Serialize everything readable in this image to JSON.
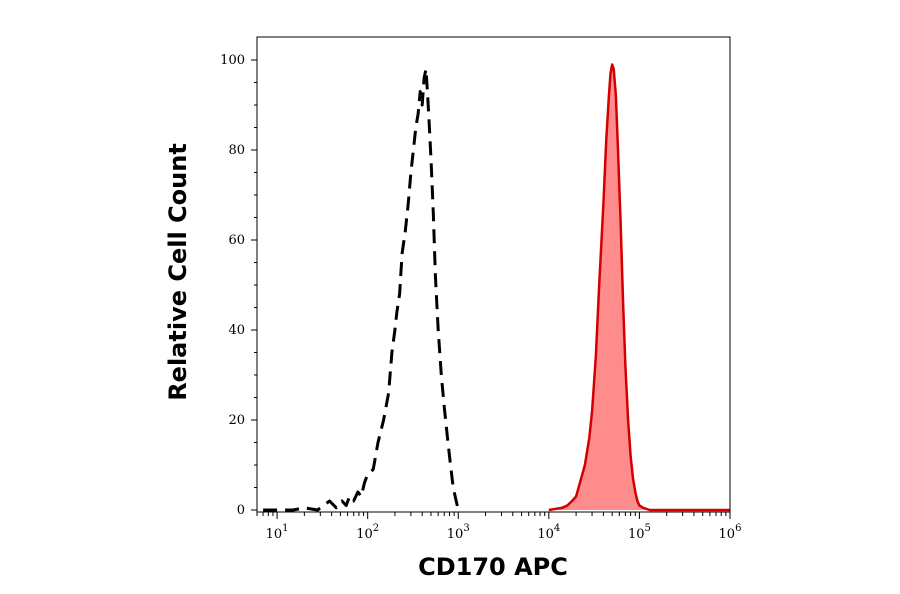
{
  "chart_data": {
    "type": "area",
    "xlabel": "CD170 APC",
    "ylabel": "Relative Cell Count",
    "x_scale": "log",
    "xlim": [
      6,
      1000000
    ],
    "ylim": [
      0,
      100
    ],
    "x_ticks": [
      {
        "value": 10,
        "base": "10",
        "exp": "1"
      },
      {
        "value": 100,
        "base": "10",
        "exp": "2"
      },
      {
        "value": 1000,
        "base": "10",
        "exp": "3"
      },
      {
        "value": 10000,
        "base": "10",
        "exp": "4"
      },
      {
        "value": 100000,
        "base": "10",
        "exp": "5"
      },
      {
        "value": 1000000,
        "base": "10",
        "exp": "6"
      }
    ],
    "y_ticks": [
      0,
      20,
      40,
      60,
      80,
      100
    ],
    "grid": false,
    "legend": "none",
    "series": [
      {
        "style": "dashed",
        "color": "#000000",
        "fill": "none",
        "x": [
          7,
          15,
          20,
          28,
          38,
          45,
          52,
          58,
          63,
          70,
          78,
          85,
          92,
          100,
          115,
          130,
          150,
          170,
          185,
          200,
          210,
          225,
          240,
          260,
          280,
          300,
          320,
          340,
          360,
          380,
          400,
          420,
          440,
          460,
          480,
          500,
          530,
          560,
          600,
          650,
          700,
          760,
          820,
          880,
          950,
          1000,
          1050
        ],
        "y": [
          0,
          0,
          0.5,
          0,
          2,
          0.5,
          2,
          1,
          3,
          2,
          4,
          3,
          6,
          8,
          9,
          15,
          20,
          26,
          35,
          40,
          44,
          48,
          57,
          62,
          68,
          75,
          80,
          85,
          88,
          93,
          90,
          96,
          98,
          92,
          85,
          78,
          66,
          52,
          40,
          30,
          23,
          16,
          10,
          5,
          2,
          0,
          0
        ]
      },
      {
        "style": "solid",
        "color": "#d40000",
        "fill": "#ff8c8c",
        "x": [
          10000,
          14000,
          16000,
          18000,
          20000,
          22000,
          25000,
          28000,
          30000,
          33000,
          36000,
          40000,
          43000,
          46000,
          48000,
          50000,
          52000,
          55000,
          58000,
          62000,
          66000,
          70000,
          75000,
          80000,
          85000,
          90000,
          95000,
          100000,
          110000,
          130000,
          200000,
          1000000
        ],
        "y": [
          0,
          0.5,
          1,
          2,
          3,
          6,
          10,
          16,
          22,
          34,
          50,
          68,
          82,
          92,
          97,
          99,
          98,
          92,
          80,
          64,
          46,
          32,
          20,
          12,
          7,
          4,
          2,
          1,
          0.5,
          0,
          0,
          0
        ]
      }
    ]
  }
}
